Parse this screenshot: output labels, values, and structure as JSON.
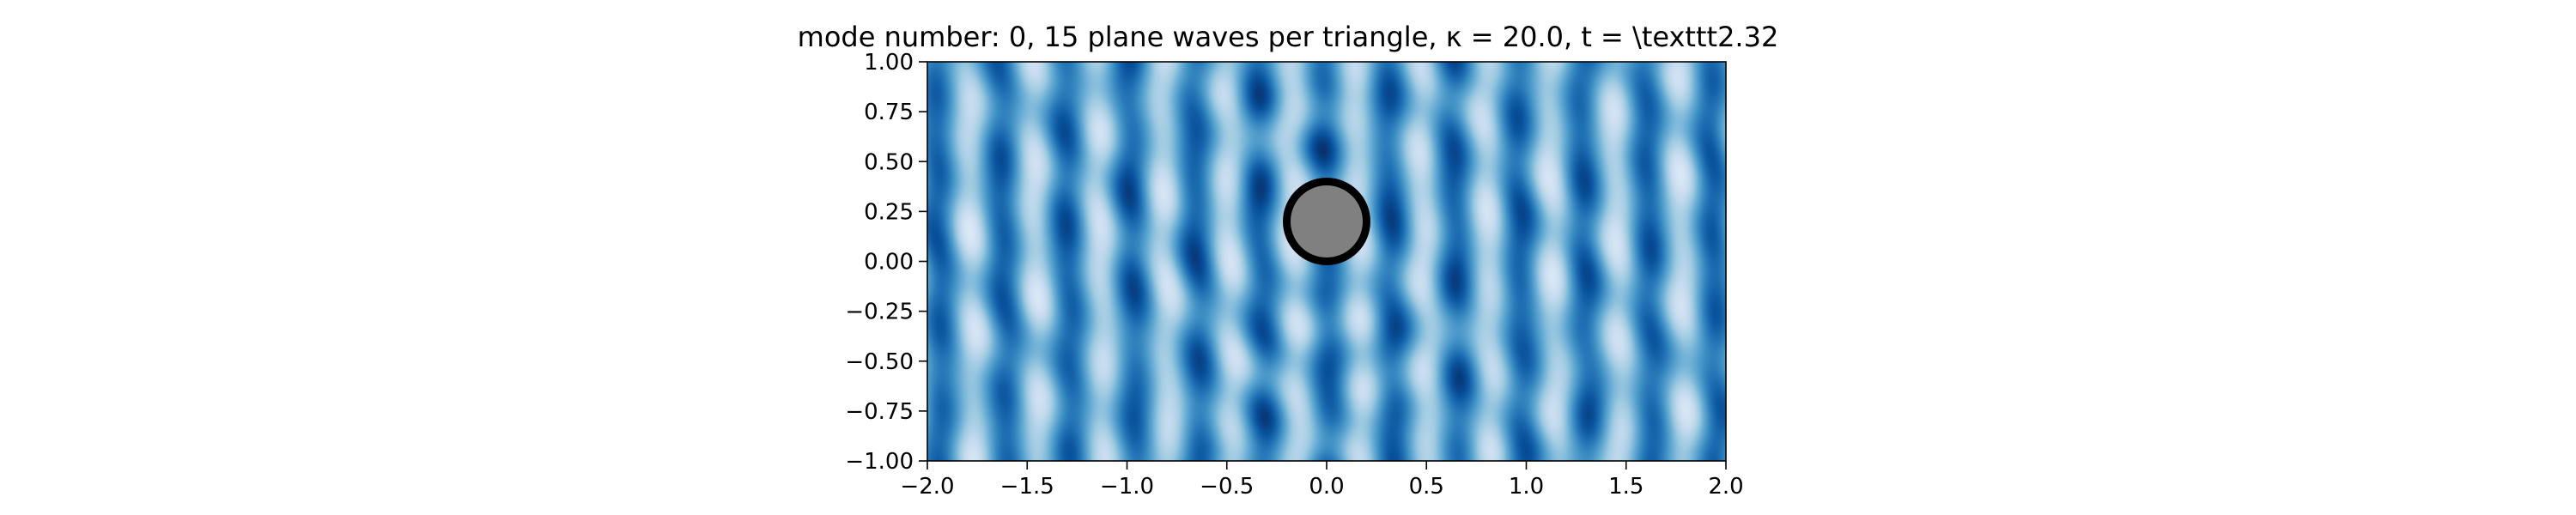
{
  "chart_data": {
    "type": "heatmap",
    "title": "mode number: 0, 15 plane waves per triangle, κ = 20.0, t =  \\texttt2.32",
    "xlabel": "",
    "ylabel": "",
    "xlim": [
      -2.0,
      2.0
    ],
    "ylim": [
      -1.0,
      1.0
    ],
    "x_ticks": [
      "−2.0",
      "−1.5",
      "−1.0",
      "−0.5",
      "0.0",
      "0.5",
      "1.0",
      "1.5",
      "2.0"
    ],
    "x_tick_values": [
      -2.0,
      -1.5,
      -1.0,
      -0.5,
      0.0,
      0.5,
      1.0,
      1.5,
      2.0
    ],
    "y_ticks": [
      "1.00",
      "0.75",
      "0.50",
      "0.25",
      "0.00",
      "−0.25",
      "−0.50",
      "−0.75",
      "−1.00"
    ],
    "y_tick_values": [
      1.0,
      0.75,
      0.5,
      0.25,
      0.0,
      -0.25,
      -0.5,
      -0.75,
      -1.0
    ],
    "colormap": "Blues",
    "grid": false,
    "scatterer": {
      "shape": "circle",
      "center": [
        0.0,
        0.2
      ],
      "radius": 0.2,
      "fill": "#808080",
      "edge": "#000000"
    }
  }
}
